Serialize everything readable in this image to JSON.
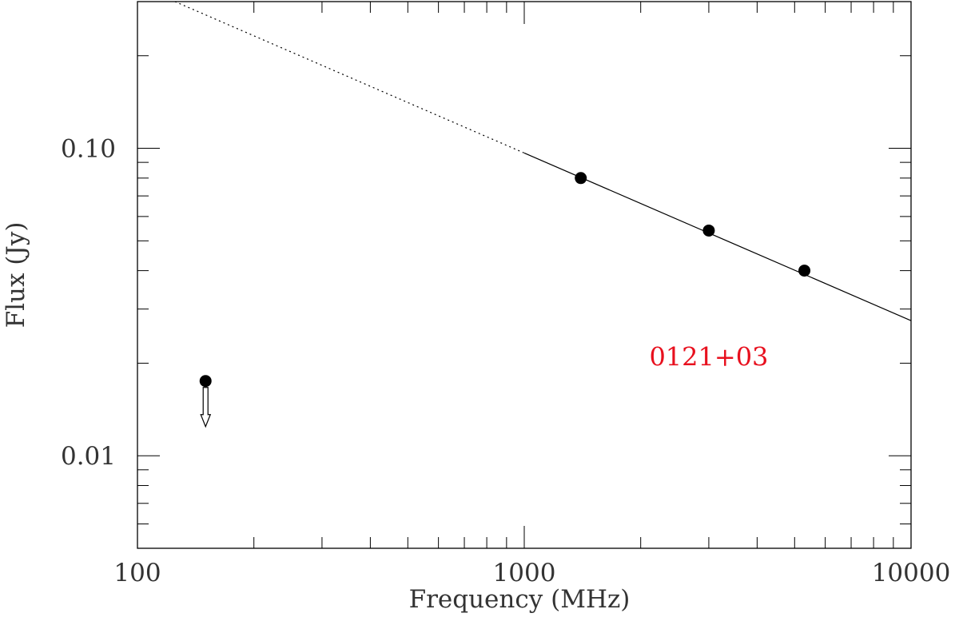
{
  "chart_data": {
    "type": "scatter",
    "title": "",
    "xlabel": "Frequency (MHz)",
    "ylabel": "Flux (Jy)",
    "xscale": "log",
    "yscale": "log",
    "xlim": [
      100,
      10000
    ],
    "ylim": [
      0.005,
      0.3
    ],
    "x_tick_labels": [
      {
        "value": 100,
        "label": "100"
      },
      {
        "value": 1000,
        "label": "1000"
      },
      {
        "value": 10000,
        "label": "10000"
      }
    ],
    "y_tick_labels": [
      {
        "value": 0.01,
        "label": "0.01"
      },
      {
        "value": 0.1,
        "label": "0.10"
      }
    ],
    "annotation": {
      "text": "0121+03",
      "x": 3000,
      "y": 0.021,
      "color": "#e8101e"
    },
    "points": [
      {
        "x": 1400,
        "y": 0.08
      },
      {
        "x": 3000,
        "y": 0.054
      },
      {
        "x": 5300,
        "y": 0.04
      }
    ],
    "upper_limits": [
      {
        "x": 150,
        "y": 0.0175
      }
    ],
    "fit": {
      "x": [
        125,
        10000
      ],
      "y": [
        0.3,
        0.0275
      ],
      "solid_from_x": 1000
    },
    "grid": false,
    "legend": "none"
  }
}
